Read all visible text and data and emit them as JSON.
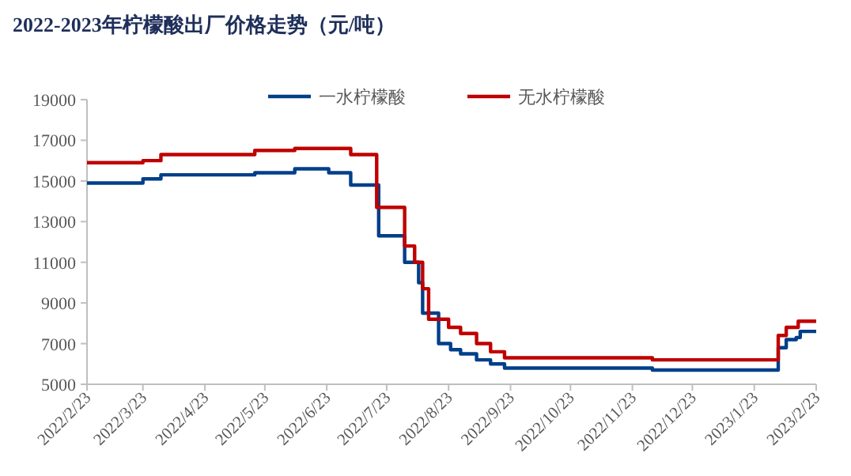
{
  "chart_data": {
    "type": "step",
    "title": "2022-2023年柠檬酸出厂价格走势（元/吨）",
    "xlim": [
      "2022-02-23",
      "2023-02-23"
    ],
    "xticks": [
      {
        "value": "2022-02-23",
        "label": "2022/2/23"
      },
      {
        "value": "2022-03-23",
        "label": "2022/3/23"
      },
      {
        "value": "2022-04-23",
        "label": "2022/4/23"
      },
      {
        "value": "2022-05-23",
        "label": "2022/5/23"
      },
      {
        "value": "2022-06-23",
        "label": "2022/6/23"
      },
      {
        "value": "2022-07-23",
        "label": "2022/7/23"
      },
      {
        "value": "2022-08-23",
        "label": "2022/8/23"
      },
      {
        "value": "2022-09-23",
        "label": "2022/9/23"
      },
      {
        "value": "2022-10-23",
        "label": "2022/10/23"
      },
      {
        "value": "2022-11-23",
        "label": "2022/11/23"
      },
      {
        "value": "2022-12-23",
        "label": "2022/12/23"
      },
      {
        "value": "2023-01-23",
        "label": "2023/1/23"
      },
      {
        "value": "2023-02-23",
        "label": "2023/2/23"
      }
    ],
    "ylim": [
      5000,
      19000
    ],
    "yticks": [
      5000,
      7000,
      9000,
      11000,
      13000,
      15000,
      17000,
      19000
    ],
    "grid": false,
    "legend": "top",
    "series": [
      {
        "name": "一水柠檬酸",
        "color": "#003f8a",
        "x": [
          "2022-02-23",
          "2022-03-23",
          "2022-04-01",
          "2022-05-18",
          "2022-06-07",
          "2022-06-24",
          "2022-07-05",
          "2022-07-19",
          "2022-08-01",
          "2022-08-08",
          "2022-08-10",
          "2022-08-18",
          "2022-08-24",
          "2022-08-29",
          "2022-09-06",
          "2022-09-13",
          "2022-09-20",
          "2022-12-03",
          "2023-02-04",
          "2023-02-08",
          "2023-02-13",
          "2023-02-15",
          "2023-02-23"
        ],
        "values": [
          14900,
          15100,
          15300,
          15400,
          15600,
          15400,
          14800,
          12300,
          11000,
          10000,
          8500,
          7000,
          6700,
          6500,
          6200,
          6000,
          5800,
          5700,
          6800,
          7200,
          7300,
          7600,
          7600
        ]
      },
      {
        "name": "无水柠檬酸",
        "color": "#c00000",
        "x": [
          "2022-02-23",
          "2022-03-23",
          "2022-04-01",
          "2022-05-18",
          "2022-06-07",
          "2022-07-05",
          "2022-07-18",
          "2022-08-01",
          "2022-08-06",
          "2022-08-10",
          "2022-08-13",
          "2022-08-23",
          "2022-08-29",
          "2022-09-06",
          "2022-09-13",
          "2022-09-20",
          "2022-12-03",
          "2023-02-04",
          "2023-02-08",
          "2023-02-14",
          "2023-02-23"
        ],
        "values": [
          15900,
          16000,
          16300,
          16500,
          16600,
          16300,
          13700,
          11800,
          11000,
          9700,
          8200,
          7800,
          7500,
          7000,
          6600,
          6300,
          6200,
          7400,
          7800,
          8100,
          8100
        ]
      }
    ]
  }
}
